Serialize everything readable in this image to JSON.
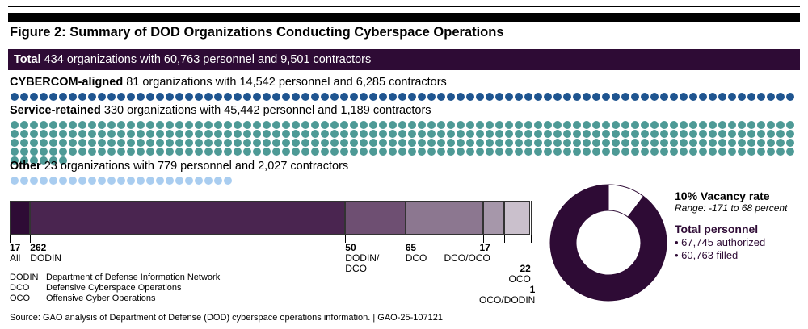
{
  "figure": {
    "title": "Figure 2: Summary of DOD Organizations Conducting Cyberspace Operations",
    "source": "Source: GAO analysis of Department of Defense (DOD) cyberspace operations information.  |  GAO-25-107121"
  },
  "groups": {
    "total": {
      "name": "Total",
      "text": "434 organizations with 60,763 personnel and 9,501 contractors"
    },
    "cybercom": {
      "name": "CYBERCOM-aligned",
      "text": "81 organizations with 14,542 personnel and 6,285 contractors",
      "dot_count": 81,
      "color": "#1f5590"
    },
    "service": {
      "name": "Service-retained",
      "text": "330 organizations with 45,442 personnel and 1,189 contractors",
      "dot_count": 330,
      "color": "#4e9a96"
    },
    "other": {
      "name": "Other",
      "text": "23 organizations with 779 personnel and 2,027 contractors",
      "dot_count": 23,
      "color": "#a9cdf0"
    }
  },
  "chart_data": [
    {
      "type": "bar",
      "categories": [
        "All",
        "DODIN",
        "DODIN/ DCO",
        "DCO",
        "DCO/OCO",
        "OCO",
        "OCO/DODIN"
      ],
      "values": [
        17,
        262,
        50,
        65,
        17,
        22,
        1
      ],
      "colors": [
        "#2e0b35",
        "#4a2550",
        "#6e4f72",
        "#8c7790",
        "#a697aa",
        "#cac0cc",
        "#ece6ee"
      ]
    },
    {
      "type": "pie",
      "categories": [
        "filled",
        "vacant"
      ],
      "values": [
        60763,
        6982
      ],
      "colors": [
        "#2e0b35",
        "#ffffff"
      ]
    }
  ],
  "vacancy": {
    "title": "10% Vacancy rate",
    "range": "Range: -171 to 68 percent"
  },
  "personnel": {
    "title": "Total personnel",
    "authorized": "• 67,745 authorized",
    "filled": "• 60,763 filled"
  },
  "legend": [
    {
      "abbr": "DODIN",
      "desc": "Department of Defense Information Network"
    },
    {
      "abbr": "DCO",
      "desc": "Defensive Cyberspace Operations"
    },
    {
      "abbr": "OCO",
      "desc": "Offensive Cyber Operations"
    }
  ]
}
